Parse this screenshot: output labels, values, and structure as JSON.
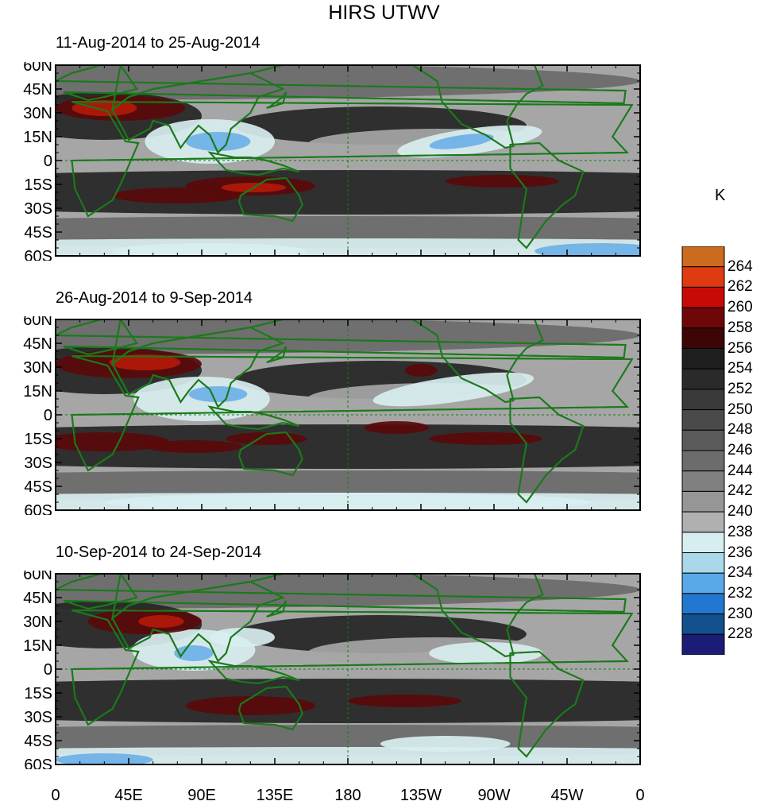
{
  "title": "HIRS UTWV",
  "panels": [
    {
      "title": "11-Aug-2014 to 25-Aug-2014"
    },
    {
      "title": "26-Aug-2014 to 9-Sep-2014"
    },
    {
      "title": "10-Sep-2014 to 24-Sep-2014"
    }
  ],
  "y_ticks": [
    "60N",
    "45N",
    "30N",
    "15N",
    "0",
    "15S",
    "30S",
    "45S",
    "60S"
  ],
  "x_ticks": [
    "0",
    "45E",
    "90E",
    "135E",
    "180",
    "135W",
    "90W",
    "45W",
    "0"
  ],
  "colorbar": {
    "unit": "K",
    "labels": [
      "264",
      "262",
      "260",
      "258",
      "256",
      "254",
      "252",
      "250",
      "248",
      "246",
      "244",
      "242",
      "240",
      "238",
      "236",
      "234",
      "232",
      "230",
      "228"
    ],
    "colors": [
      "#cc6a1e",
      "#e03a10",
      "#c80a06",
      "#6e0808",
      "#3c0606",
      "#1e1e1e",
      "#2a2a2a",
      "#3a3a3a",
      "#4a4a4a",
      "#5a5a5a",
      "#6c6c6c",
      "#808080",
      "#969696",
      "#b0b0b0",
      "#d6eef0",
      "#a8d8ea",
      "#58a8ea",
      "#2278d0",
      "#12508e",
      "#1c1c78"
    ]
  },
  "map_colors": {
    "coastline": "#1a7a1a",
    "hot": "#b21a0a",
    "warm": "#5a0a0a",
    "dark": "#252525",
    "mid": "#6a6a6a",
    "light": "#a6a6a6",
    "moist": "#d8eef0",
    "very_moist": "#6cb0e6"
  }
}
